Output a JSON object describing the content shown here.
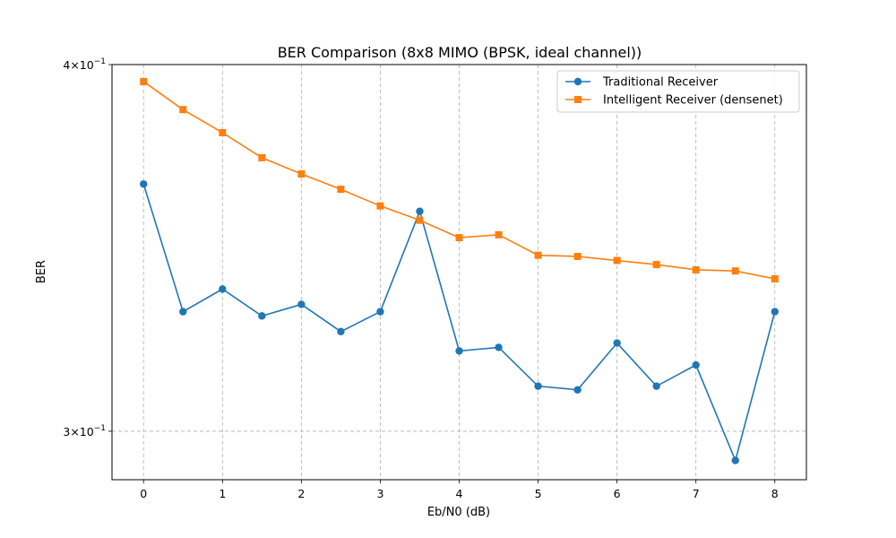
{
  "chart_data": {
    "type": "line",
    "title": "BER Comparison (8x8 MIMO (BPSK, ideal channel))",
    "xlabel": "Eb/N0 (dB)",
    "ylabel": "BER",
    "yscale": "log",
    "xlim": [
      -0.4,
      8.4
    ],
    "ylim": [
      0.2888,
      0.4
    ],
    "x_ticks": [
      0,
      1,
      2,
      3,
      4,
      5,
      6,
      7,
      8
    ],
    "x_tick_labels": [
      "0",
      "1",
      "2",
      "3",
      "4",
      "5",
      "6",
      "7",
      "8"
    ],
    "y_ticks": [
      0.3,
      0.4
    ],
    "y_tick_labels": [
      {
        "mant": "3",
        "base": "10",
        "exp": "−1"
      },
      {
        "mant": "4",
        "base": "10",
        "exp": "−1"
      }
    ],
    "grid": true,
    "legend_position": "top-right",
    "x": [
      0,
      0.5,
      1,
      1.5,
      2,
      2.5,
      3,
      3.5,
      4,
      4.5,
      5,
      5.5,
      6,
      6.5,
      7,
      7.5,
      8
    ],
    "series": [
      {
        "name": "Traditional Receiver",
        "color": "#1f77b4",
        "marker": "circle",
        "values": [
          0.3642,
          0.3295,
          0.3354,
          0.3284,
          0.3314,
          0.3244,
          0.3295,
          0.3565,
          0.3195,
          0.3204,
          0.3108,
          0.3099,
          0.3215,
          0.3108,
          0.316,
          0.2932,
          0.3295
        ]
      },
      {
        "name": "Intelligent Receiver (densenet)",
        "color": "#ff7f0e",
        "marker": "square",
        "values": [
          0.3947,
          0.3861,
          0.3792,
          0.3718,
          0.3671,
          0.3627,
          0.358,
          0.354,
          0.3492,
          0.35,
          0.3444,
          0.3441,
          0.343,
          0.3419,
          0.3405,
          0.3402,
          0.3381
        ]
      }
    ]
  }
}
